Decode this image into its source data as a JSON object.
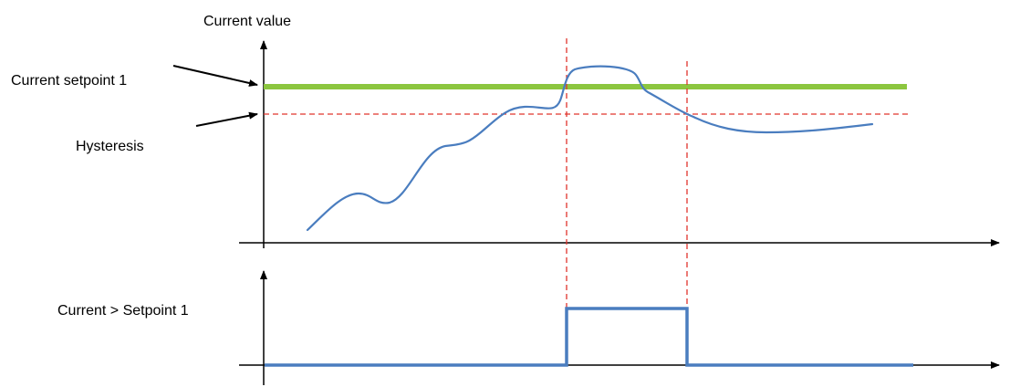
{
  "labels": {
    "y_axis_title": "Current value",
    "setpoint": "Current setpoint 1",
    "hysteresis": "Hysteresis",
    "output": "Current > Setpoint 1"
  },
  "colors": {
    "setpoint_line": "#8cc63f",
    "signal_curve": "#4a7dbf",
    "guide_lines": "#e0342c",
    "axes": "#000000",
    "output_line": "#4a7dbf"
  }
}
